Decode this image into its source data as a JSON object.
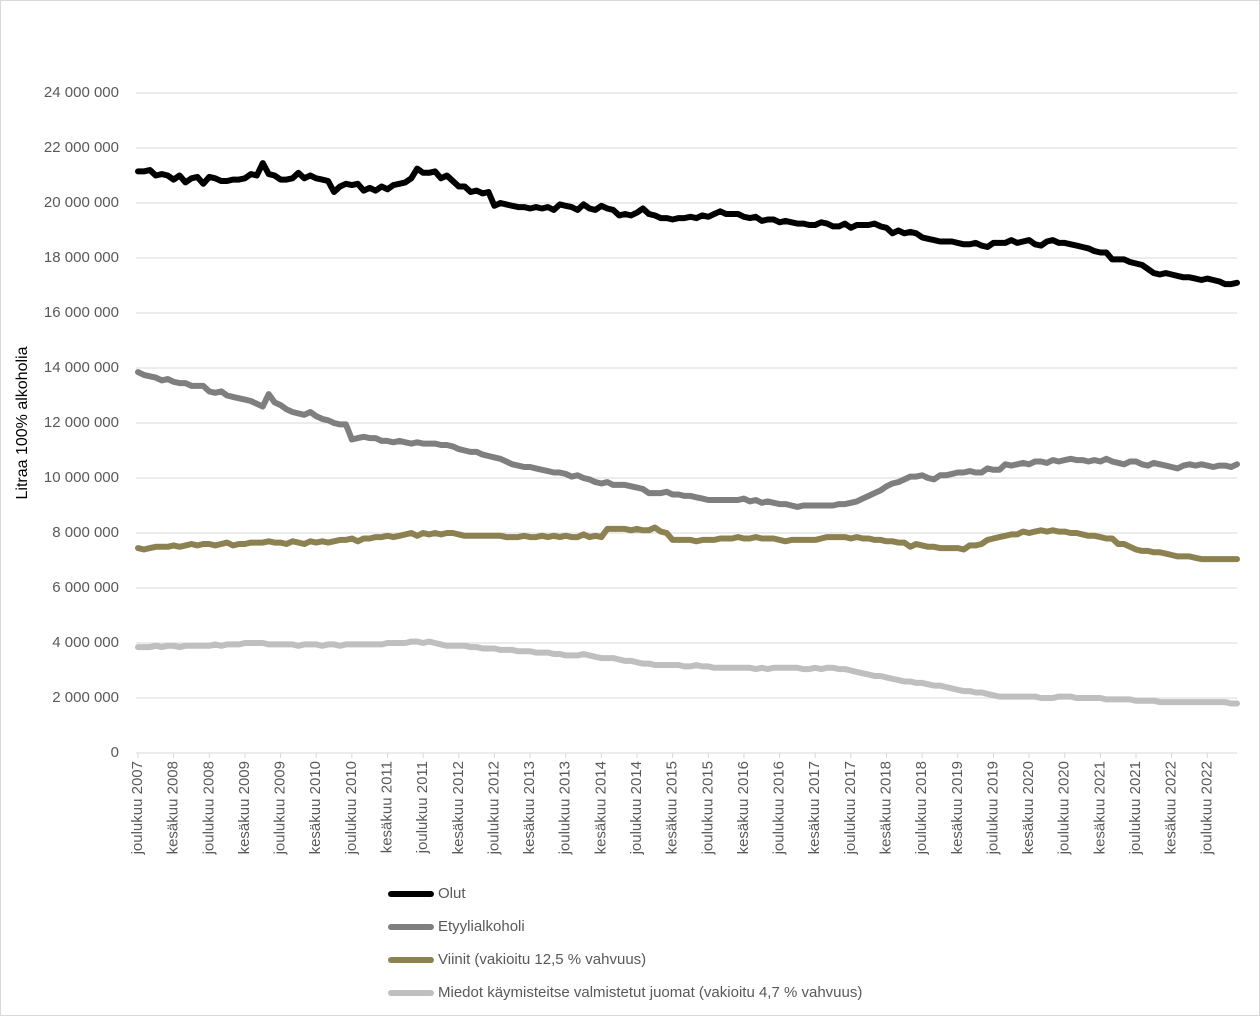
{
  "chart_data": {
    "type": "line",
    "y_label": "Litraa 100% alkoholia",
    "legend_position": "bottom",
    "grid": true,
    "ylim": [
      0,
      24000000
    ],
    "yticks": [
      {
        "value": 0,
        "label": "0"
      },
      {
        "value": 2000000,
        "label": "2 000 000"
      },
      {
        "value": 4000000,
        "label": "4 000 000"
      },
      {
        "value": 6000000,
        "label": "6 000 000"
      },
      {
        "value": 8000000,
        "label": "8 000 000"
      },
      {
        "value": 10000000,
        "label": "10 000 000"
      },
      {
        "value": 12000000,
        "label": "12 000 000"
      },
      {
        "value": 14000000,
        "label": "14 000 000"
      },
      {
        "value": 16000000,
        "label": "16 000 000"
      },
      {
        "value": 18000000,
        "label": "18 000 000"
      },
      {
        "value": 20000000,
        "label": "20 000 000"
      },
      {
        "value": 22000000,
        "label": "22 000 000"
      },
      {
        "value": 24000000,
        "label": "24 000 000"
      }
    ],
    "categories": [
      "joulukuu 2007",
      null,
      null,
      null,
      null,
      null,
      "kesäkuu 2008",
      null,
      null,
      null,
      null,
      null,
      "joulukuu 2008",
      null,
      null,
      null,
      null,
      null,
      "kesäkuu 2009",
      null,
      null,
      null,
      null,
      null,
      "joulukuu 2009",
      null,
      null,
      null,
      null,
      null,
      "kesäkuu 2010",
      null,
      null,
      null,
      null,
      null,
      "joulukuu 2010",
      null,
      null,
      null,
      null,
      null,
      "kesäkuu 2011",
      null,
      null,
      null,
      null,
      null,
      "joulukuu 2011",
      null,
      null,
      null,
      null,
      null,
      "kesäkuu 2012",
      null,
      null,
      null,
      null,
      null,
      "joulukuu 2012",
      null,
      null,
      null,
      null,
      null,
      "kesäkuu 2013",
      null,
      null,
      null,
      null,
      null,
      "joulukuu 2013",
      null,
      null,
      null,
      null,
      null,
      "kesäkuu 2014",
      null,
      null,
      null,
      null,
      null,
      "joulukuu 2014",
      null,
      null,
      null,
      null,
      null,
      "kesäkuu 2015",
      null,
      null,
      null,
      null,
      null,
      "joulukuu 2015",
      null,
      null,
      null,
      null,
      null,
      "kesäkuu 2016",
      null,
      null,
      null,
      null,
      null,
      "joulukuu 2016",
      null,
      null,
      null,
      null,
      null,
      "kesäkuu 2017",
      null,
      null,
      null,
      null,
      null,
      "joulukuu 2017",
      null,
      null,
      null,
      null,
      null,
      "kesäkuu 2018",
      null,
      null,
      null,
      null,
      null,
      "joulukuu 2018",
      null,
      null,
      null,
      null,
      null,
      "kesäkuu 2019",
      null,
      null,
      null,
      null,
      null,
      "joulukuu 2019",
      null,
      null,
      null,
      null,
      null,
      "kesäkuu 2020",
      null,
      null,
      null,
      null,
      null,
      "joulukuu 2020",
      null,
      null,
      null,
      null,
      null,
      "kesäkuu 2021",
      null,
      null,
      null,
      null,
      null,
      "joulukuu 2021",
      null,
      null,
      null,
      null,
      null,
      "kesäkuu 2022",
      null,
      null,
      null,
      null,
      null,
      "joulukuu 2022",
      null,
      null,
      null,
      null,
      null
    ],
    "series": [
      {
        "name": "Olut",
        "color": "#000000",
        "values": [
          21150000,
          21150000,
          21200000,
          21000000,
          21050000,
          21000000,
          20850000,
          21000000,
          20750000,
          20900000,
          20950000,
          20700000,
          20950000,
          20900000,
          20800000,
          20800000,
          20850000,
          20850000,
          20900000,
          21050000,
          21000000,
          21450000,
          21050000,
          21000000,
          20850000,
          20850000,
          20900000,
          21100000,
          20900000,
          21000000,
          20900000,
          20850000,
          20800000,
          20400000,
          20600000,
          20700000,
          20650000,
          20700000,
          20450000,
          20550000,
          20450000,
          20600000,
          20500000,
          20650000,
          20700000,
          20750000,
          20900000,
          21250000,
          21100000,
          21100000,
          21150000,
          20900000,
          21000000,
          20800000,
          20600000,
          20600000,
          20400000,
          20450000,
          20350000,
          20400000,
          19900000,
          20000000,
          19950000,
          19900000,
          19850000,
          19850000,
          19800000,
          19850000,
          19800000,
          19850000,
          19750000,
          19950000,
          19900000,
          19850000,
          19750000,
          19950000,
          19800000,
          19750000,
          19900000,
          19800000,
          19750000,
          19550000,
          19600000,
          19550000,
          19650000,
          19800000,
          19600000,
          19550000,
          19450000,
          19450000,
          19400000,
          19450000,
          19450000,
          19500000,
          19450000,
          19550000,
          19500000,
          19600000,
          19700000,
          19600000,
          19600000,
          19600000,
          19500000,
          19450000,
          19500000,
          19350000,
          19400000,
          19400000,
          19300000,
          19350000,
          19300000,
          19250000,
          19250000,
          19200000,
          19200000,
          19300000,
          19250000,
          19150000,
          19150000,
          19250000,
          19100000,
          19200000,
          19200000,
          19200000,
          19250000,
          19150000,
          19100000,
          18900000,
          19000000,
          18900000,
          18950000,
          18900000,
          18750000,
          18700000,
          18650000,
          18600000,
          18600000,
          18600000,
          18550000,
          18500000,
          18500000,
          18550000,
          18450000,
          18400000,
          18550000,
          18550000,
          18550000,
          18650000,
          18550000,
          18600000,
          18650000,
          18500000,
          18450000,
          18600000,
          18650000,
          18550000,
          18550000,
          18500000,
          18450000,
          18400000,
          18350000,
          18250000,
          18200000,
          18200000,
          17950000,
          17950000,
          17950000,
          17850000,
          17800000,
          17750000,
          17600000,
          17450000,
          17400000,
          17450000,
          17400000,
          17350000,
          17300000,
          17300000,
          17250000,
          17200000,
          17250000,
          17200000,
          17150000,
          17050000,
          17050000,
          17100000
        ]
      },
      {
        "name": "Etyylialkoholi",
        "color": "#7f7f7f",
        "values": [
          13850000,
          13750000,
          13700000,
          13650000,
          13550000,
          13600000,
          13500000,
          13450000,
          13450000,
          13350000,
          13350000,
          13350000,
          13150000,
          13100000,
          13150000,
          13000000,
          12950000,
          12900000,
          12850000,
          12800000,
          12700000,
          12600000,
          13050000,
          12750000,
          12650000,
          12500000,
          12400000,
          12350000,
          12300000,
          12400000,
          12250000,
          12150000,
          12100000,
          12000000,
          11950000,
          11950000,
          11400000,
          11450000,
          11500000,
          11450000,
          11450000,
          11350000,
          11350000,
          11300000,
          11350000,
          11300000,
          11250000,
          11300000,
          11250000,
          11250000,
          11250000,
          11200000,
          11200000,
          11150000,
          11050000,
          11000000,
          10950000,
          10950000,
          10850000,
          10800000,
          10750000,
          10700000,
          10600000,
          10500000,
          10450000,
          10400000,
          10400000,
          10350000,
          10300000,
          10250000,
          10200000,
          10200000,
          10150000,
          10050000,
          10100000,
          10000000,
          9950000,
          9850000,
          9800000,
          9850000,
          9750000,
          9750000,
          9750000,
          9700000,
          9650000,
          9600000,
          9450000,
          9450000,
          9450000,
          9500000,
          9400000,
          9400000,
          9350000,
          9350000,
          9300000,
          9250000,
          9200000,
          9200000,
          9200000,
          9200000,
          9200000,
          9200000,
          9250000,
          9150000,
          9200000,
          9100000,
          9150000,
          9100000,
          9050000,
          9050000,
          9000000,
          8950000,
          9000000,
          9000000,
          9000000,
          9000000,
          9000000,
          9000000,
          9050000,
          9050000,
          9100000,
          9150000,
          9250000,
          9350000,
          9450000,
          9550000,
          9700000,
          9800000,
          9850000,
          9950000,
          10050000,
          10050000,
          10100000,
          10000000,
          9950000,
          10100000,
          10100000,
          10150000,
          10200000,
          10200000,
          10250000,
          10200000,
          10200000,
          10350000,
          10300000,
          10300000,
          10500000,
          10450000,
          10500000,
          10550000,
          10500000,
          10600000,
          10600000,
          10550000,
          10650000,
          10600000,
          10650000,
          10700000,
          10650000,
          10650000,
          10600000,
          10650000,
          10600000,
          10700000,
          10600000,
          10550000,
          10500000,
          10600000,
          10600000,
          10500000,
          10450000,
          10550000,
          10500000,
          10450000,
          10400000,
          10350000,
          10450000,
          10500000,
          10450000,
          10500000,
          10450000,
          10400000,
          10450000,
          10450000,
          10400000,
          10500000
        ]
      },
      {
        "name": "Viinit (vakioitu 12,5 % vahvuus)",
        "color": "#8c8251",
        "values": [
          7450000,
          7400000,
          7450000,
          7500000,
          7500000,
          7500000,
          7550000,
          7500000,
          7550000,
          7600000,
          7550000,
          7600000,
          7600000,
          7550000,
          7600000,
          7650000,
          7550000,
          7600000,
          7600000,
          7650000,
          7650000,
          7650000,
          7700000,
          7650000,
          7650000,
          7600000,
          7700000,
          7650000,
          7600000,
          7700000,
          7650000,
          7700000,
          7650000,
          7700000,
          7750000,
          7750000,
          7800000,
          7700000,
          7800000,
          7800000,
          7850000,
          7850000,
          7900000,
          7850000,
          7900000,
          7950000,
          8000000,
          7900000,
          8000000,
          7950000,
          8000000,
          7950000,
          8000000,
          8000000,
          7950000,
          7900000,
          7900000,
          7900000,
          7900000,
          7900000,
          7900000,
          7900000,
          7850000,
          7850000,
          7850000,
          7900000,
          7850000,
          7850000,
          7900000,
          7850000,
          7900000,
          7850000,
          7900000,
          7850000,
          7850000,
          7950000,
          7850000,
          7900000,
          7850000,
          8150000,
          8150000,
          8150000,
          8150000,
          8100000,
          8150000,
          8100000,
          8100000,
          8200000,
          8050000,
          8000000,
          7750000,
          7750000,
          7750000,
          7750000,
          7700000,
          7750000,
          7750000,
          7750000,
          7800000,
          7800000,
          7800000,
          7850000,
          7800000,
          7800000,
          7850000,
          7800000,
          7800000,
          7800000,
          7750000,
          7700000,
          7750000,
          7750000,
          7750000,
          7750000,
          7750000,
          7800000,
          7850000,
          7850000,
          7850000,
          7850000,
          7800000,
          7850000,
          7800000,
          7800000,
          7750000,
          7750000,
          7700000,
          7700000,
          7650000,
          7650000,
          7500000,
          7600000,
          7550000,
          7500000,
          7500000,
          7450000,
          7450000,
          7450000,
          7450000,
          7400000,
          7550000,
          7550000,
          7600000,
          7750000,
          7800000,
          7850000,
          7900000,
          7950000,
          7950000,
          8050000,
          8000000,
          8050000,
          8100000,
          8050000,
          8100000,
          8050000,
          8050000,
          8000000,
          8000000,
          7950000,
          7900000,
          7900000,
          7850000,
          7800000,
          7800000,
          7600000,
          7600000,
          7500000,
          7400000,
          7350000,
          7350000,
          7300000,
          7300000,
          7250000,
          7200000,
          7150000,
          7150000,
          7150000,
          7100000,
          7050000,
          7050000,
          7050000,
          7050000,
          7050000,
          7050000,
          7050000
        ]
      },
      {
        "name": "Miedot käymisteitse valmistetut juomat (vakioitu 4,7 % vahvuus)",
        "color": "#bfbfbf",
        "values": [
          3850000,
          3850000,
          3850000,
          3900000,
          3850000,
          3900000,
          3900000,
          3850000,
          3900000,
          3900000,
          3900000,
          3900000,
          3900000,
          3950000,
          3900000,
          3950000,
          3950000,
          3950000,
          4000000,
          4000000,
          4000000,
          4000000,
          3950000,
          3950000,
          3950000,
          3950000,
          3950000,
          3900000,
          3950000,
          3950000,
          3950000,
          3900000,
          3950000,
          3950000,
          3900000,
          3950000,
          3950000,
          3950000,
          3950000,
          3950000,
          3950000,
          3950000,
          4000000,
          4000000,
          4000000,
          4000000,
          4050000,
          4050000,
          4000000,
          4050000,
          4000000,
          3950000,
          3900000,
          3900000,
          3900000,
          3900000,
          3850000,
          3850000,
          3800000,
          3800000,
          3800000,
          3750000,
          3750000,
          3750000,
          3700000,
          3700000,
          3700000,
          3650000,
          3650000,
          3650000,
          3600000,
          3600000,
          3550000,
          3550000,
          3550000,
          3600000,
          3550000,
          3500000,
          3450000,
          3450000,
          3450000,
          3400000,
          3350000,
          3350000,
          3300000,
          3250000,
          3250000,
          3200000,
          3200000,
          3200000,
          3200000,
          3200000,
          3150000,
          3150000,
          3200000,
          3150000,
          3150000,
          3100000,
          3100000,
          3100000,
          3100000,
          3100000,
          3100000,
          3100000,
          3050000,
          3100000,
          3050000,
          3100000,
          3100000,
          3100000,
          3100000,
          3100000,
          3050000,
          3050000,
          3100000,
          3050000,
          3100000,
          3100000,
          3050000,
          3050000,
          3000000,
          2950000,
          2900000,
          2850000,
          2800000,
          2800000,
          2750000,
          2700000,
          2650000,
          2600000,
          2600000,
          2550000,
          2550000,
          2500000,
          2450000,
          2450000,
          2400000,
          2350000,
          2300000,
          2250000,
          2250000,
          2200000,
          2200000,
          2150000,
          2100000,
          2050000,
          2050000,
          2050000,
          2050000,
          2050000,
          2050000,
          2050000,
          2000000,
          2000000,
          2000000,
          2050000,
          2050000,
          2050000,
          2000000,
          2000000,
          2000000,
          2000000,
          2000000,
          1950000,
          1950000,
          1950000,
          1950000,
          1950000,
          1900000,
          1900000,
          1900000,
          1900000,
          1850000,
          1850000,
          1850000,
          1850000,
          1850000,
          1850000,
          1850000,
          1850000,
          1850000,
          1850000,
          1850000,
          1850000,
          1800000,
          1800000
        ]
      }
    ]
  }
}
